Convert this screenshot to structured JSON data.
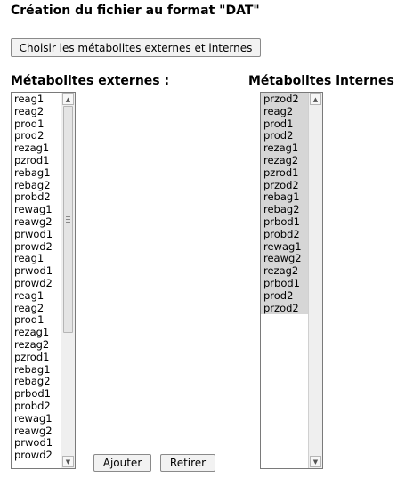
{
  "page": {
    "title": "Création du fichier au format \"DAT\""
  },
  "toolbar": {
    "choose_label": "Choisir les métabolites externes et internes"
  },
  "external": {
    "title": "Métabolites externes :",
    "items": [
      "reag1",
      "reag2",
      "prod1",
      "prod2",
      "rezag1",
      "pzrod1",
      "rebag1",
      "rebag2",
      "probd2",
      "rewag1",
      "reawg2",
      "prwod1",
      "prowd2",
      "reag1",
      "prwod1",
      "prowd2",
      "reag1",
      "reag2",
      "prod1",
      "rezag1",
      "rezag2",
      "pzrod1",
      "rebag1",
      "rebag2",
      "prbod1",
      "probd2",
      "rewag1",
      "reawg2",
      "prwod1",
      "prowd2"
    ]
  },
  "internal": {
    "title": "Métabolites internes :",
    "items": [
      "przod2",
      "reag2",
      "prod1",
      "prod2",
      "rezag1",
      "rezag2",
      "pzrod1",
      "przod2",
      "rebag1",
      "rebag2",
      "prbod1",
      "probd2",
      "rewag1",
      "reawg2",
      "rezag2",
      "prbod1",
      "prod2",
      "przod2"
    ]
  },
  "actions": {
    "add_label": "Ajouter",
    "remove_label": "Retirer"
  },
  "icons": {
    "scroll_up": "arrow-up-icon",
    "scroll_down": "arrow-down-icon",
    "grip": "grip-icon"
  },
  "colors": {
    "selected_bg": "#d6d6d6",
    "button_bg": "#f2f2f2"
  }
}
